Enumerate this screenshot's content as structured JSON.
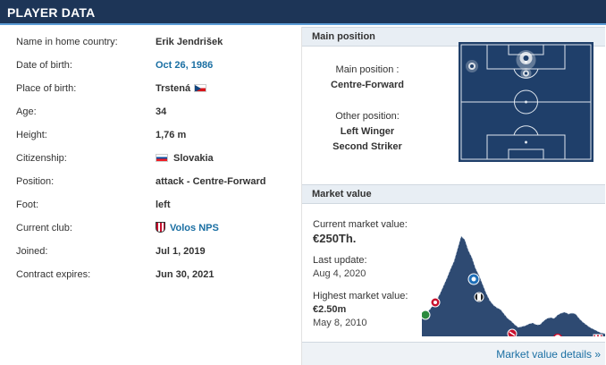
{
  "header": {
    "title": "PLAYER DATA"
  },
  "player": {
    "rows": [
      {
        "label": "Name in home country:",
        "value": "Erik Jendrišek"
      },
      {
        "label": "Date of birth:",
        "value": "Oct 26, 1986"
      },
      {
        "label": "Place of birth:",
        "value": "Trstená"
      },
      {
        "label": "Age:",
        "value": "34"
      },
      {
        "label": "Height:",
        "value": "1,76 m"
      },
      {
        "label": "Citizenship:",
        "value": "Slovakia"
      },
      {
        "label": "Position:",
        "value": "attack - Centre-Forward"
      },
      {
        "label": "Foot:",
        "value": "left"
      },
      {
        "label": "Current club:",
        "value": "Volos NPS"
      },
      {
        "label": "Joined:",
        "value": "Jul 1, 2019"
      },
      {
        "label": "Contract expires:",
        "value": "Jun 30, 2021"
      }
    ]
  },
  "main_position": {
    "heading": "Main position",
    "main_label": "Main position :",
    "main_value": "Centre-Forward",
    "other_label": "Other position:",
    "other_values": [
      "Left Winger",
      "Second Striker"
    ]
  },
  "market_value": {
    "heading": "Market value",
    "current_label": "Current market value:",
    "current_value": "€250Th.",
    "last_update_label": "Last update:",
    "last_update_value": "Aug 4, 2020",
    "highest_label": "Highest market value:",
    "highest_value": "€2.50m",
    "highest_date": "May 8, 2010",
    "details_link": "Market value details »"
  },
  "colors": {
    "header_bg": "#1d3557",
    "link": "#1a6fa3",
    "pitch": "#1f3f6a",
    "chart_fill": "#2e4a72"
  }
}
